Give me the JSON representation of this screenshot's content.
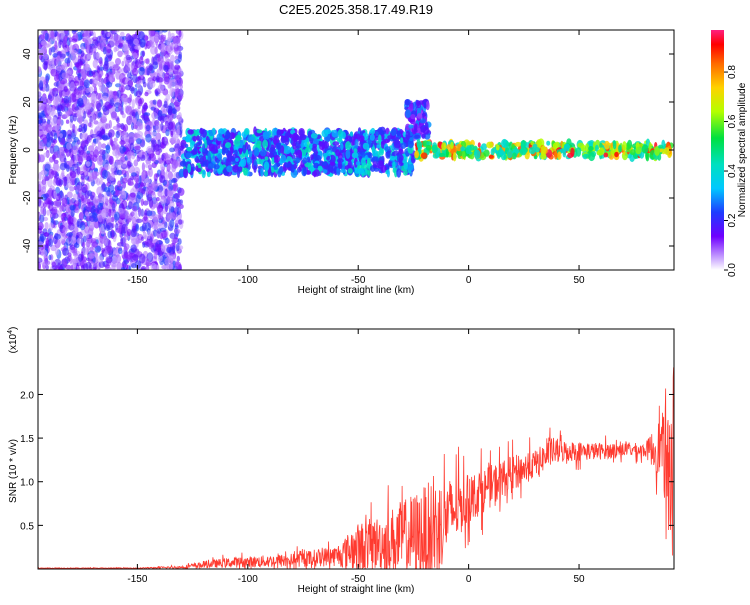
{
  "title": "C2E5.2025.358.17.49.R19",
  "chart_data": [
    {
      "type": "heatmap",
      "xlabel": "Height of straight line (km)",
      "ylabel": "Frequency (Hz)",
      "xlim": [
        -195,
        93
      ],
      "ylim": [
        -50,
        50
      ],
      "x_ticks": [
        -150,
        -100,
        -50,
        0,
        50
      ],
      "y_ticks": [
        -40,
        -20,
        0,
        20,
        40
      ],
      "colorbar": {
        "label": "Normalized spectral amplitude",
        "ticks": [
          0.0,
          0.2,
          0.4,
          0.6,
          0.8
        ],
        "range": [
          0,
          0.97
        ]
      },
      "regions": [
        {
          "x": [
            -195,
            -130
          ],
          "y": [
            -50,
            50
          ],
          "amplitude": [
            0.05,
            0.25
          ],
          "description": "broadband noise"
        },
        {
          "x": [
            -130,
            -25
          ],
          "y": [
            -10,
            8
          ],
          "amplitude": [
            0.15,
            0.45
          ]
        },
        {
          "x": [
            -28,
            -18
          ],
          "y": [
            5,
            20
          ],
          "amplitude": [
            0.1,
            0.3
          ]
        },
        {
          "x": [
            -25,
            93
          ],
          "y": [
            -3,
            3
          ],
          "amplitude": [
            0.4,
            0.95
          ],
          "description": "narrow high-amplitude band near 0 Hz"
        }
      ]
    },
    {
      "type": "line",
      "xlabel": "Height of straight line (km)",
      "ylabel": "SNR (10 * v/v)",
      "y_multiplier": "(x10",
      "y_multiplier_exp": "4",
      "y_multiplier_close": ")",
      "xlim": [
        -195,
        93
      ],
      "ylim": [
        0,
        2.75
      ],
      "x_ticks": [
        -150,
        -100,
        -50,
        0,
        50
      ],
      "y_ticks": [
        0.5,
        1.0,
        1.5,
        2.0
      ],
      "y_tick_labels": [
        "0.5",
        "1.0",
        "1.5",
        "2.0"
      ],
      "line_color": "#ff3b30",
      "envelope": {
        "x": [
          -195,
          -150,
          -130,
          -120,
          -110,
          -100,
          -80,
          -60,
          -50,
          -40,
          -30,
          -20,
          -15,
          -10,
          0,
          10,
          20,
          30,
          38,
          45,
          60,
          70,
          80,
          88,
          90,
          93
        ],
        "y_mean": [
          0.01,
          0.01,
          0.02,
          0.05,
          0.07,
          0.08,
          0.1,
          0.15,
          0.25,
          0.3,
          0.35,
          0.4,
          0.45,
          0.6,
          0.8,
          0.95,
          1.1,
          1.2,
          1.35,
          1.35,
          1.35,
          1.37,
          1.36,
          1.4,
          1.0,
          1.5
        ],
        "y_spread": [
          0.005,
          0.005,
          0.02,
          0.05,
          0.07,
          0.08,
          0.1,
          0.15,
          0.35,
          0.4,
          0.55,
          0.7,
          0.75,
          0.55,
          0.35,
          0.3,
          0.25,
          0.2,
          0.2,
          0.15,
          0.12,
          0.1,
          0.1,
          0.5,
          0.8,
          1.2
        ]
      }
    }
  ]
}
